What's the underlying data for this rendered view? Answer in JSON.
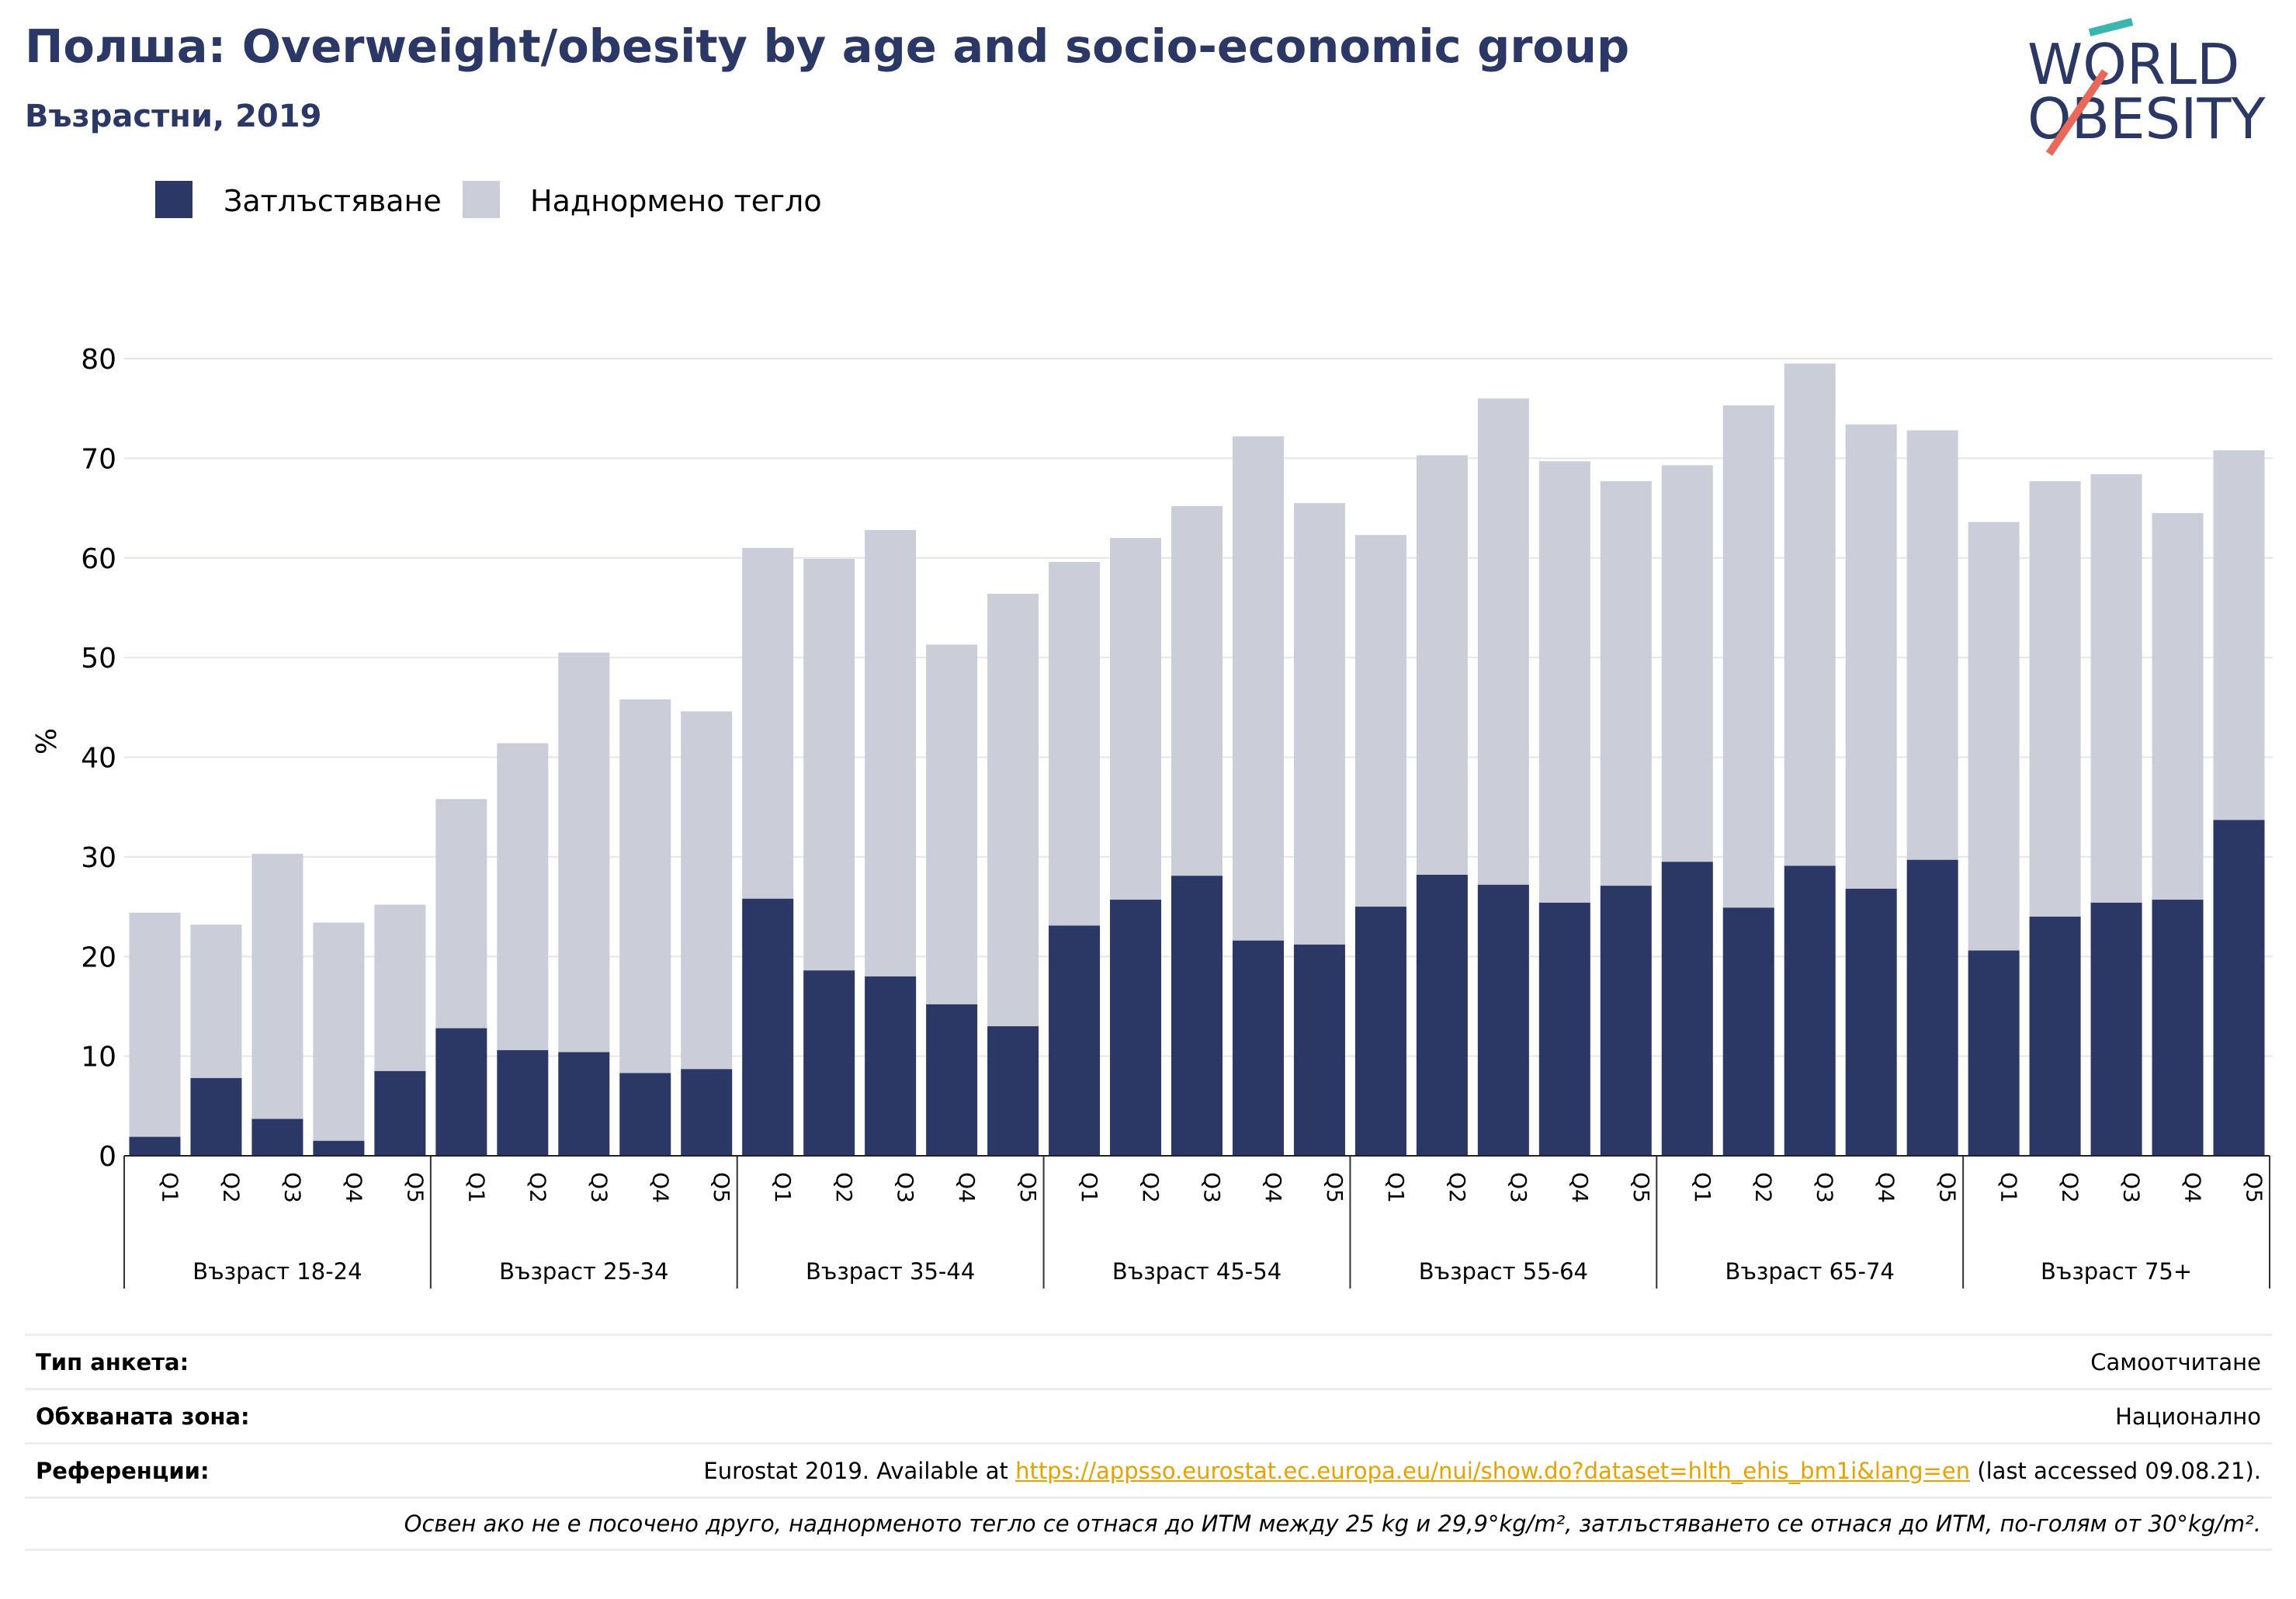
{
  "header": {
    "title": "Полша: Overweight/obesity by age and socio-economic group",
    "subtitle": "Възрастни, 2019"
  },
  "logo": {
    "line1": "WORLD",
    "line2": "OBESITY"
  },
  "colors": {
    "obesity": "#2b3764",
    "overweight": "#cbcdd9",
    "title": "#2b3764",
    "link": "#e8a200"
  },
  "chart_data": {
    "type": "bar",
    "stacked": true,
    "ylabel": "%",
    "xlabel": "",
    "ylim": [
      0,
      80
    ],
    "yticks": [
      0,
      10,
      20,
      30,
      40,
      50,
      60,
      70,
      80
    ],
    "grid": true,
    "legend_position": "top-left",
    "groups": [
      "Възраст 18-24",
      "Възраст 25-34",
      "Възраст 35-44",
      "Възраст 45-54",
      "Възраст 55-64",
      "Възраст 65-74",
      "Възраст 75+"
    ],
    "subcategories": [
      "Q1",
      "Q2",
      "Q3",
      "Q4",
      "Q5"
    ],
    "series": [
      {
        "name": "Затлъстяване",
        "values": [
          1.9,
          7.8,
          3.7,
          1.5,
          8.5,
          12.8,
          10.6,
          10.4,
          8.3,
          8.7,
          25.8,
          18.6,
          18.0,
          15.2,
          13.0,
          23.1,
          25.7,
          28.1,
          21.6,
          21.2,
          25.0,
          28.2,
          27.2,
          25.4,
          27.1,
          29.5,
          24.9,
          29.1,
          26.8,
          29.7,
          20.6,
          24.0,
          25.4,
          25.7,
          33.7
        ]
      },
      {
        "name": "Наднормено тегло",
        "values": [
          22.5,
          15.4,
          26.6,
          21.9,
          16.7,
          23.0,
          30.8,
          40.1,
          37.5,
          35.9,
          35.2,
          41.3,
          44.8,
          36.1,
          43.4,
          36.5,
          36.3,
          37.1,
          50.6,
          44.3,
          37.3,
          42.1,
          48.8,
          44.3,
          40.6,
          39.8,
          50.4,
          50.4,
          46.6,
          43.1,
          43.0,
          43.7,
          43.0,
          38.8,
          37.1
        ]
      }
    ]
  },
  "info": {
    "rows": [
      {
        "key": "Тип анкета:",
        "value": "Самоотчитане"
      },
      {
        "key": "Обхваната зона:",
        "value": "Национално"
      }
    ],
    "reference": {
      "key": "Референции:",
      "prefix": "Eurostat 2019. Available at ",
      "link": "https://appsso.eurostat.ec.europa.eu/nui/show.do?dataset=hlth_ehis_bm1i&lang=en",
      "suffix": " (last accessed 09.08.21)."
    },
    "note": "Освен ако не е посочено друго, наднорменото тегло се отнася до ИТМ между 25 kg и 29,9°kg/m², затлъстяването се отнася до ИТМ, по-голям от 30°kg/m²."
  }
}
